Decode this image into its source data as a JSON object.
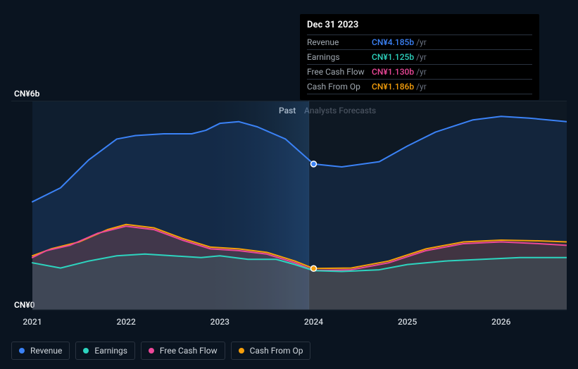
{
  "chart": {
    "type": "area",
    "background_color": "#0a1420",
    "plot_past_bg": "rgba(30,60,90,0.25)",
    "plot_forecast_bg": "rgba(20,30,40,0.4)",
    "gridline_color": "#1a2530",
    "axis_line_color": "#1a2530",
    "ylabel_top": "CN¥6b",
    "ylabel_bottom": "CN¥0",
    "ylabel_fontsize": 12,
    "ylabel_color": "#ffffff",
    "ylim": [
      0,
      6
    ],
    "xlim": [
      2021,
      2026.7
    ],
    "xticks": [
      2021,
      2022,
      2023,
      2024,
      2025,
      2026
    ],
    "xtick_labels": [
      "2021",
      "2022",
      "2023",
      "2024",
      "2025",
      "2026"
    ],
    "xtick_fontsize": 12,
    "xtick_color": "#d0d6dc",
    "past_label": "Past",
    "forecast_label": "Analysts Forecasts",
    "divider_x": 2023.95,
    "marker_x": 2024.0,
    "marker_radius": 4,
    "marker_stroke": "#ffffff",
    "line_width": 2,
    "series": {
      "revenue": {
        "label": "Revenue",
        "color": "#3b82f6",
        "fill_opacity": 0.12,
        "points": [
          [
            2021.0,
            3.1
          ],
          [
            2021.3,
            3.5
          ],
          [
            2021.6,
            4.3
          ],
          [
            2021.9,
            4.9
          ],
          [
            2022.1,
            5.0
          ],
          [
            2022.4,
            5.05
          ],
          [
            2022.7,
            5.05
          ],
          [
            2022.85,
            5.15
          ],
          [
            2023.0,
            5.35
          ],
          [
            2023.2,
            5.4
          ],
          [
            2023.4,
            5.25
          ],
          [
            2023.7,
            4.9
          ],
          [
            2024.0,
            4.185
          ],
          [
            2024.3,
            4.1
          ],
          [
            2024.7,
            4.25
          ],
          [
            2025.0,
            4.7
          ],
          [
            2025.3,
            5.1
          ],
          [
            2025.7,
            5.45
          ],
          [
            2026.0,
            5.55
          ],
          [
            2026.3,
            5.5
          ],
          [
            2026.7,
            5.4
          ]
        ]
      },
      "earnings": {
        "label": "Earnings",
        "color": "#2dd4bf",
        "fill_opacity": 0.1,
        "points": [
          [
            2021.0,
            1.35
          ],
          [
            2021.3,
            1.2
          ],
          [
            2021.6,
            1.4
          ],
          [
            2021.9,
            1.55
          ],
          [
            2022.2,
            1.6
          ],
          [
            2022.5,
            1.55
          ],
          [
            2022.8,
            1.5
          ],
          [
            2023.0,
            1.55
          ],
          [
            2023.3,
            1.45
          ],
          [
            2023.6,
            1.45
          ],
          [
            2023.8,
            1.3
          ],
          [
            2024.0,
            1.125
          ],
          [
            2024.3,
            1.1
          ],
          [
            2024.7,
            1.15
          ],
          [
            2025.0,
            1.3
          ],
          [
            2025.4,
            1.4
          ],
          [
            2025.8,
            1.45
          ],
          [
            2026.2,
            1.5
          ],
          [
            2026.7,
            1.5
          ]
        ]
      },
      "fcf": {
        "label": "Free Cash Flow",
        "color": "#ec4899",
        "fill_opacity": 0.12,
        "points": [
          [
            2021.0,
            1.5
          ],
          [
            2021.15,
            1.7
          ],
          [
            2021.4,
            1.85
          ],
          [
            2021.7,
            2.2
          ],
          [
            2022.0,
            2.4
          ],
          [
            2022.3,
            2.3
          ],
          [
            2022.6,
            2.0
          ],
          [
            2022.9,
            1.75
          ],
          [
            2023.2,
            1.7
          ],
          [
            2023.5,
            1.6
          ],
          [
            2023.8,
            1.35
          ],
          [
            2024.0,
            1.13
          ],
          [
            2024.4,
            1.15
          ],
          [
            2024.8,
            1.35
          ],
          [
            2025.2,
            1.7
          ],
          [
            2025.6,
            1.9
          ],
          [
            2026.0,
            1.95
          ],
          [
            2026.4,
            1.9
          ],
          [
            2026.7,
            1.85
          ]
        ]
      },
      "cfo": {
        "label": "Cash From Op",
        "color": "#f59e0b",
        "fill_opacity": 0.1,
        "points": [
          [
            2021.0,
            1.55
          ],
          [
            2021.2,
            1.75
          ],
          [
            2021.5,
            1.95
          ],
          [
            2021.8,
            2.3
          ],
          [
            2022.0,
            2.45
          ],
          [
            2022.3,
            2.35
          ],
          [
            2022.6,
            2.05
          ],
          [
            2022.9,
            1.8
          ],
          [
            2023.2,
            1.75
          ],
          [
            2023.5,
            1.65
          ],
          [
            2023.8,
            1.4
          ],
          [
            2024.0,
            1.186
          ],
          [
            2024.4,
            1.2
          ],
          [
            2024.8,
            1.4
          ],
          [
            2025.2,
            1.75
          ],
          [
            2025.6,
            1.95
          ],
          [
            2026.0,
            2.0
          ],
          [
            2026.4,
            1.98
          ],
          [
            2026.7,
            1.95
          ]
        ]
      }
    }
  },
  "tooltip": {
    "date": "Dec 31 2023",
    "unit": "/yr",
    "rows": [
      {
        "label": "Revenue",
        "value": "CN¥4.185b",
        "color": "#3b82f6"
      },
      {
        "label": "Earnings",
        "value": "CN¥1.125b",
        "color": "#2dd4bf"
      },
      {
        "label": "Free Cash Flow",
        "value": "CN¥1.130b",
        "color": "#ec4899"
      },
      {
        "label": "Cash From Op",
        "value": "CN¥1.186b",
        "color": "#f59e0b"
      }
    ]
  },
  "legend": {
    "items": [
      {
        "key": "revenue",
        "label": "Revenue",
        "color": "#3b82f6"
      },
      {
        "key": "earnings",
        "label": "Earnings",
        "color": "#2dd4bf"
      },
      {
        "key": "fcf",
        "label": "Free Cash Flow",
        "color": "#ec4899"
      },
      {
        "key": "cfo",
        "label": "Cash From Op",
        "color": "#f59e0b"
      }
    ]
  }
}
